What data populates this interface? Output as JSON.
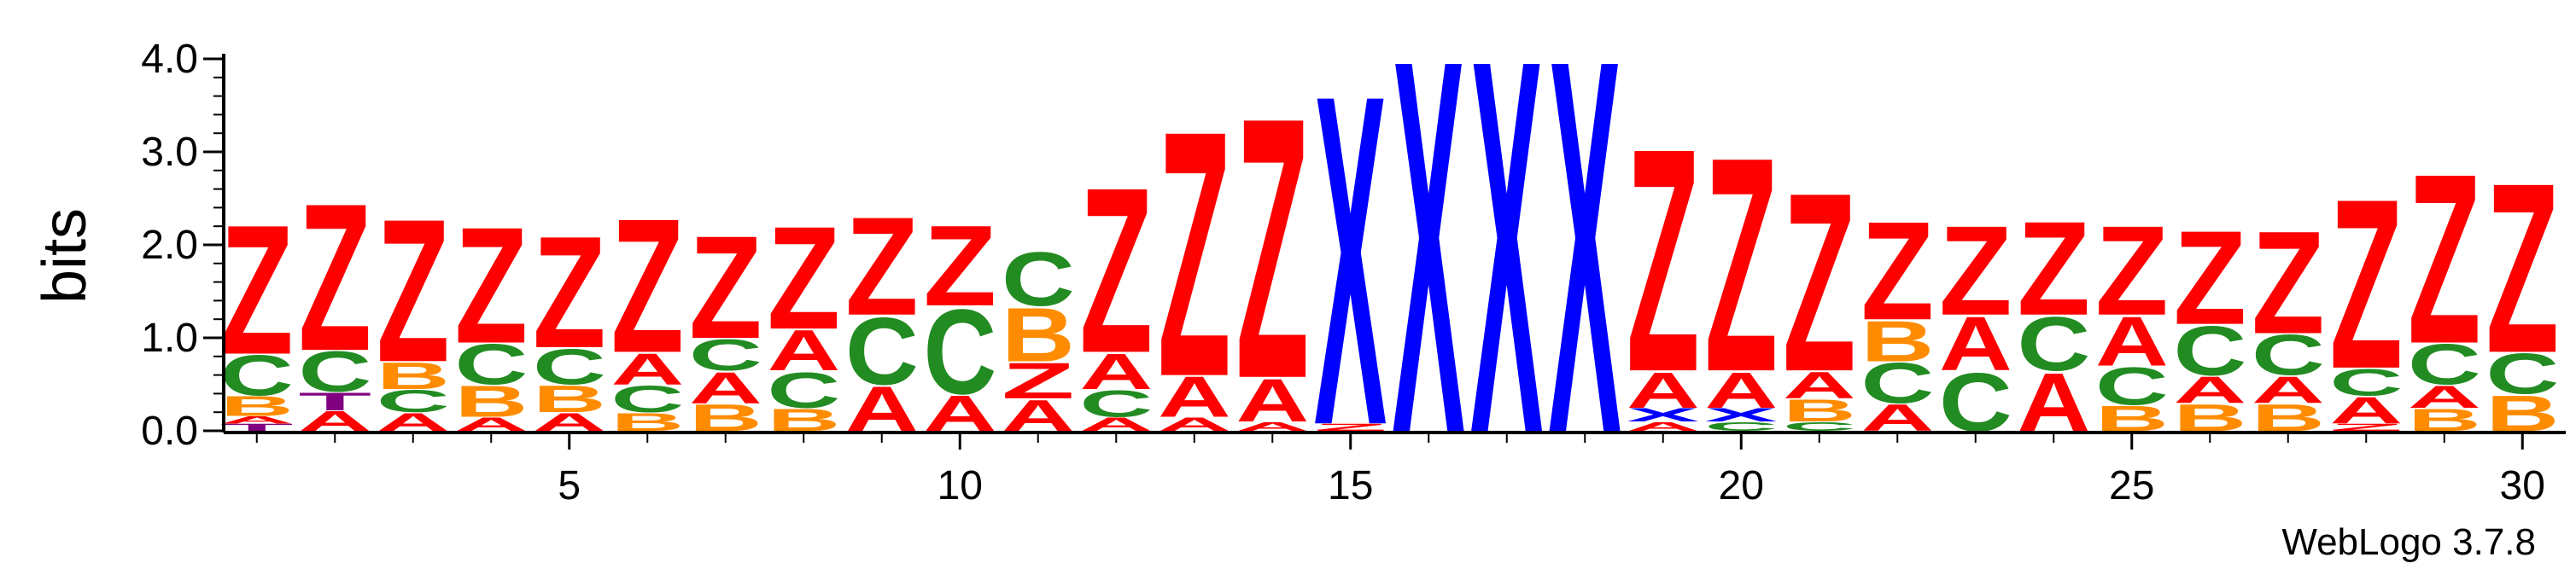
{
  "chart_data": {
    "type": "sequence-logo",
    "ylabel": "bits",
    "ylim": [
      0,
      4.0
    ],
    "y_ticks": [
      "0.0",
      "1.0",
      "2.0",
      "3.0",
      "4.0"
    ],
    "x_ticks": [
      5,
      10,
      15,
      20,
      25,
      30
    ],
    "positions": [
      1,
      30
    ],
    "credit": "WebLogo 3.7.8",
    "colors": {
      "Z": "#ff0000",
      "A": "#ff0000",
      "X": "#0000ff",
      "C": "#228b22",
      "B": "#ff8c00",
      "T": "#800080"
    },
    "columns": [
      {
        "pos": 1,
        "stack": [
          {
            "l": "T",
            "v": 0.08
          },
          {
            "l": "A",
            "v": 0.08
          },
          {
            "l": "B",
            "v": 0.22
          },
          {
            "l": "C",
            "v": 0.45
          },
          {
            "l": "Z",
            "v": 1.45
          }
        ]
      },
      {
        "pos": 2,
        "stack": [
          {
            "l": "A",
            "v": 0.22
          },
          {
            "l": "T",
            "v": 0.2
          },
          {
            "l": "C",
            "v": 0.45
          },
          {
            "l": "Z",
            "v": 1.65
          }
        ]
      },
      {
        "pos": 3,
        "stack": [
          {
            "l": "A",
            "v": 0.2
          },
          {
            "l": "C",
            "v": 0.25
          },
          {
            "l": "B",
            "v": 0.3
          },
          {
            "l": "Z",
            "v": 1.6
          }
        ]
      },
      {
        "pos": 4,
        "stack": [
          {
            "l": "A",
            "v": 0.15
          },
          {
            "l": "B",
            "v": 0.35
          },
          {
            "l": "C",
            "v": 0.45
          },
          {
            "l": "Z",
            "v": 1.3
          }
        ]
      },
      {
        "pos": 5,
        "stack": [
          {
            "l": "A",
            "v": 0.2
          },
          {
            "l": "B",
            "v": 0.3
          },
          {
            "l": "C",
            "v": 0.4
          },
          {
            "l": "Z",
            "v": 1.25
          }
        ]
      },
      {
        "pos": 6,
        "stack": [
          {
            "l": "B",
            "v": 0.2
          },
          {
            "l": "C",
            "v": 0.3
          },
          {
            "l": "A",
            "v": 0.35
          },
          {
            "l": "Z",
            "v": 1.5
          }
        ]
      },
      {
        "pos": 7,
        "stack": [
          {
            "l": "B",
            "v": 0.3
          },
          {
            "l": "A",
            "v": 0.35
          },
          {
            "l": "C",
            "v": 0.35
          },
          {
            "l": "Z",
            "v": 1.15
          }
        ]
      },
      {
        "pos": 8,
        "stack": [
          {
            "l": "B",
            "v": 0.25
          },
          {
            "l": "C",
            "v": 0.4
          },
          {
            "l": "A",
            "v": 0.45
          },
          {
            "l": "Z",
            "v": 1.15
          }
        ]
      },
      {
        "pos": 9,
        "stack": [
          {
            "l": "A",
            "v": 0.5
          },
          {
            "l": "C",
            "v": 0.75
          },
          {
            "l": "Z",
            "v": 1.1
          }
        ]
      },
      {
        "pos": 10,
        "stack": [
          {
            "l": "A",
            "v": 0.4
          },
          {
            "l": "C",
            "v": 0.95
          },
          {
            "l": "Z",
            "v": 0.9
          }
        ]
      },
      {
        "pos": 11,
        "stack": [
          {
            "l": "A",
            "v": 0.35
          },
          {
            "l": "Z",
            "v": 0.4
          },
          {
            "l": "B",
            "v": 0.6
          },
          {
            "l": "C",
            "v": 0.6
          }
        ]
      },
      {
        "pos": 12,
        "stack": [
          {
            "l": "A",
            "v": 0.15
          },
          {
            "l": "C",
            "v": 0.3
          },
          {
            "l": "A",
            "v": 0.4
          },
          {
            "l": "Z",
            "v": 1.85
          }
        ]
      },
      {
        "pos": 13,
        "stack": [
          {
            "l": "A",
            "v": 0.15
          },
          {
            "l": "A",
            "v": 0.45
          },
          {
            "l": "Z",
            "v": 2.75
          }
        ]
      },
      {
        "pos": 14,
        "stack": [
          {
            "l": "A",
            "v": 0.1
          },
          {
            "l": "A",
            "v": 0.48
          },
          {
            "l": "Z",
            "v": 2.92
          }
        ]
      },
      {
        "pos": 15,
        "stack": [
          {
            "l": "Z",
            "v": 0.08
          },
          {
            "l": "X",
            "v": 3.7
          }
        ]
      },
      {
        "pos": 16,
        "stack": [
          {
            "l": "X",
            "v": 4.18
          }
        ]
      },
      {
        "pos": 17,
        "stack": [
          {
            "l": "X",
            "v": 4.18
          }
        ]
      },
      {
        "pos": 18,
        "stack": [
          {
            "l": "X",
            "v": 4.18
          }
        ]
      },
      {
        "pos": 19,
        "stack": [
          {
            "l": "A",
            "v": 0.1
          },
          {
            "l": "X",
            "v": 0.15
          },
          {
            "l": "A",
            "v": 0.4
          },
          {
            "l": "Z",
            "v": 2.5
          }
        ]
      },
      {
        "pos": 20,
        "stack": [
          {
            "l": "C",
            "v": 0.1
          },
          {
            "l": "X",
            "v": 0.15
          },
          {
            "l": "A",
            "v": 0.4
          },
          {
            "l": "Z",
            "v": 2.4
          }
        ]
      },
      {
        "pos": 21,
        "stack": [
          {
            "l": "C",
            "v": 0.1
          },
          {
            "l": "B",
            "v": 0.25
          },
          {
            "l": "A",
            "v": 0.3
          },
          {
            "l": "Z",
            "v": 2.0
          }
        ]
      },
      {
        "pos": 22,
        "stack": [
          {
            "l": "A",
            "v": 0.3
          },
          {
            "l": "C",
            "v": 0.45
          },
          {
            "l": "B",
            "v": 0.45
          },
          {
            "l": "Z",
            "v": 1.1
          }
        ]
      },
      {
        "pos": 23,
        "stack": [
          {
            "l": "C",
            "v": 0.65
          },
          {
            "l": "A",
            "v": 0.6
          },
          {
            "l": "Z",
            "v": 1.0
          }
        ]
      },
      {
        "pos": 24,
        "stack": [
          {
            "l": "A",
            "v": 0.65
          },
          {
            "l": "C",
            "v": 0.6
          },
          {
            "l": "Z",
            "v": 1.05
          }
        ]
      },
      {
        "pos": 25,
        "stack": [
          {
            "l": "B",
            "v": 0.28
          },
          {
            "l": "C",
            "v": 0.42
          },
          {
            "l": "A",
            "v": 0.55
          },
          {
            "l": "Z",
            "v": 1.0
          }
        ]
      },
      {
        "pos": 26,
        "stack": [
          {
            "l": "B",
            "v": 0.3
          },
          {
            "l": "A",
            "v": 0.3
          },
          {
            "l": "C",
            "v": 0.55
          },
          {
            "l": "Z",
            "v": 1.05
          }
        ]
      },
      {
        "pos": 27,
        "stack": [
          {
            "l": "B",
            "v": 0.3
          },
          {
            "l": "A",
            "v": 0.3
          },
          {
            "l": "C",
            "v": 0.45
          },
          {
            "l": "Z",
            "v": 1.15
          }
        ]
      },
      {
        "pos": 28,
        "stack": [
          {
            "l": "Z",
            "v": 0.08
          },
          {
            "l": "A",
            "v": 0.3
          },
          {
            "l": "C",
            "v": 0.3
          },
          {
            "l": "Z",
            "v": 1.9
          }
        ]
      },
      {
        "pos": 29,
        "stack": [
          {
            "l": "B",
            "v": 0.25
          },
          {
            "l": "A",
            "v": 0.25
          },
          {
            "l": "C",
            "v": 0.45
          },
          {
            "l": "Z",
            "v": 1.9
          }
        ]
      },
      {
        "pos": 30,
        "stack": [
          {
            "l": "B",
            "v": 0.4
          },
          {
            "l": "C",
            "v": 0.45
          },
          {
            "l": "Z",
            "v": 1.9
          }
        ]
      }
    ]
  }
}
